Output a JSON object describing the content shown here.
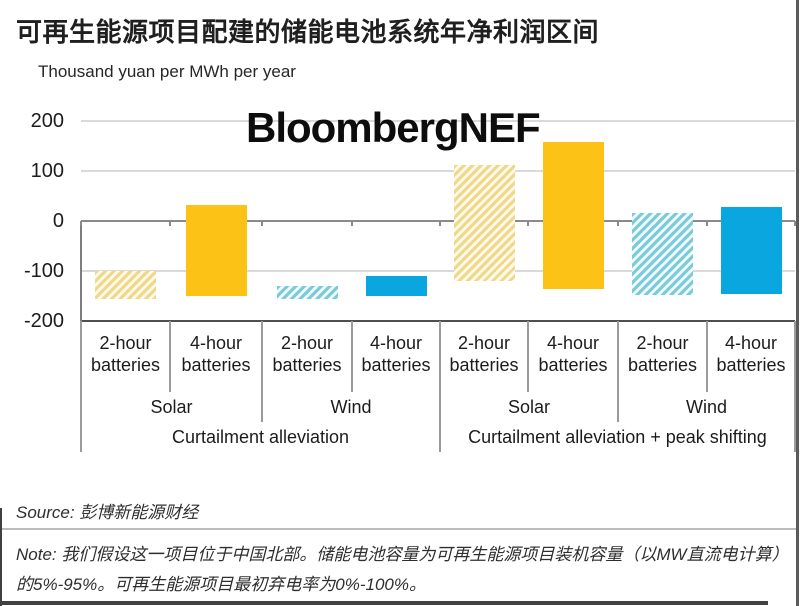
{
  "page": {
    "title": "可再生能源项目配建的储能电池系统年净利润区间",
    "watermark": "BloombergNEF"
  },
  "chart_data": {
    "type": "bar",
    "subtype": "floating-range-bars",
    "title": "可再生能源项目配建的储能电池系统年净利润区间",
    "unit_label": "Thousand yuan per MWh per year",
    "ylabel": "Thousand yuan per MWh per year",
    "xlabel": "",
    "ylim": [
      -200,
      200
    ],
    "y_ticks": [
      200,
      100,
      0,
      -100,
      -200
    ],
    "grid": "horizontal",
    "legend": "none",
    "x_axis": {
      "battery_labels": [
        "2-hour batteries",
        "4-hour batteries",
        "2-hour batteries",
        "4-hour batteries",
        "2-hour batteries",
        "4-hour batteries",
        "2-hour batteries",
        "4-hour batteries"
      ],
      "technology_labels": [
        "Solar",
        "Wind",
        "Solar",
        "Wind"
      ],
      "scenario_labels": [
        "Curtailment alleviation",
        "Curtailment alleviation + peak shifting"
      ]
    },
    "bars": [
      {
        "scenario": "Curtailment alleviation",
        "technology": "Solar",
        "battery": "2-hour batteries",
        "range": [
          -155,
          -100
        ],
        "style": "yellow-hatched"
      },
      {
        "scenario": "Curtailment alleviation",
        "technology": "Solar",
        "battery": "4-hour batteries",
        "range": [
          -150,
          32
        ],
        "style": "yellow-solid"
      },
      {
        "scenario": "Curtailment alleviation",
        "technology": "Wind",
        "battery": "2-hour batteries",
        "range": [
          -155,
          -130
        ],
        "style": "blue-hatched"
      },
      {
        "scenario": "Curtailment alleviation",
        "technology": "Wind",
        "battery": "4-hour batteries",
        "range": [
          -150,
          -110
        ],
        "style": "blue-solid"
      },
      {
        "scenario": "Curtailment alleviation + peak shifting",
        "technology": "Solar",
        "battery": "2-hour batteries",
        "range": [
          -120,
          112
        ],
        "style": "yellow-hatched"
      },
      {
        "scenario": "Curtailment alleviation + peak shifting",
        "technology": "Solar",
        "battery": "4-hour batteries",
        "range": [
          -135,
          158
        ],
        "style": "yellow-solid"
      },
      {
        "scenario": "Curtailment alleviation + peak shifting",
        "technology": "Wind",
        "battery": "2-hour batteries",
        "range": [
          -147,
          17
        ],
        "style": "blue-hatched"
      },
      {
        "scenario": "Curtailment alleviation + peak shifting",
        "technology": "Wind",
        "battery": "4-hour batteries",
        "range": [
          -146,
          28
        ],
        "style": "blue-solid"
      }
    ],
    "colors": {
      "solar_solid": "#FCC216",
      "wind_solid": "#0AA6E0",
      "solar_hatch_stripe": "#EFD989",
      "wind_hatch_stripe": "#7BCBDA",
      "gridline": "#d9d9d9",
      "zero_line": "#8a8a8a",
      "axis_line": "#4f4f4f"
    }
  },
  "footer": {
    "source_prefix": "Source:",
    "source_text": "彭博新能源财经",
    "note_prefix": "Note:",
    "note_text": "我们假设这一项目位于中国北部。储能电池容量为可再生能源项目装机容量（以MW直流电计算）的5%-95%。可再生能源项目最初弃电率为0%-100%。"
  }
}
